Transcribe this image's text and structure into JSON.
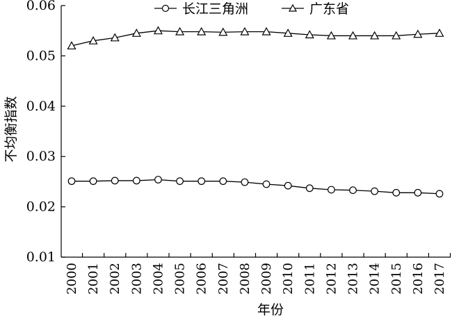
{
  "chart_data": {
    "type": "line",
    "title": "",
    "xlabel": "年份",
    "ylabel": "不均衡指数",
    "ylim": [
      0.01,
      0.06
    ],
    "yticks": [
      "0.01",
      "0.02",
      "0.03",
      "0.04",
      "0.05",
      "0.06"
    ],
    "categories": [
      "2000",
      "2001",
      "2002",
      "2003",
      "2004",
      "2005",
      "2006",
      "2007",
      "2008",
      "2009",
      "2010",
      "2011",
      "2012",
      "2013",
      "2014",
      "2015",
      "2016",
      "2017"
    ],
    "legend_position": "top",
    "grid": false,
    "series": [
      {
        "name": "长江三角洲",
        "marker": "circle",
        "values": [
          0.0251,
          0.0251,
          0.0252,
          0.0252,
          0.0254,
          0.0251,
          0.0251,
          0.0251,
          0.0249,
          0.0245,
          0.0242,
          0.0237,
          0.0234,
          0.0233,
          0.0231,
          0.0228,
          0.0228,
          0.0226
        ]
      },
      {
        "name": "广东省",
        "marker": "triangle",
        "values": [
          0.052,
          0.053,
          0.0536,
          0.0545,
          0.055,
          0.0548,
          0.0548,
          0.0547,
          0.0548,
          0.0548,
          0.0545,
          0.0542,
          0.054,
          0.054,
          0.054,
          0.054,
          0.0543,
          0.0545
        ]
      }
    ]
  }
}
